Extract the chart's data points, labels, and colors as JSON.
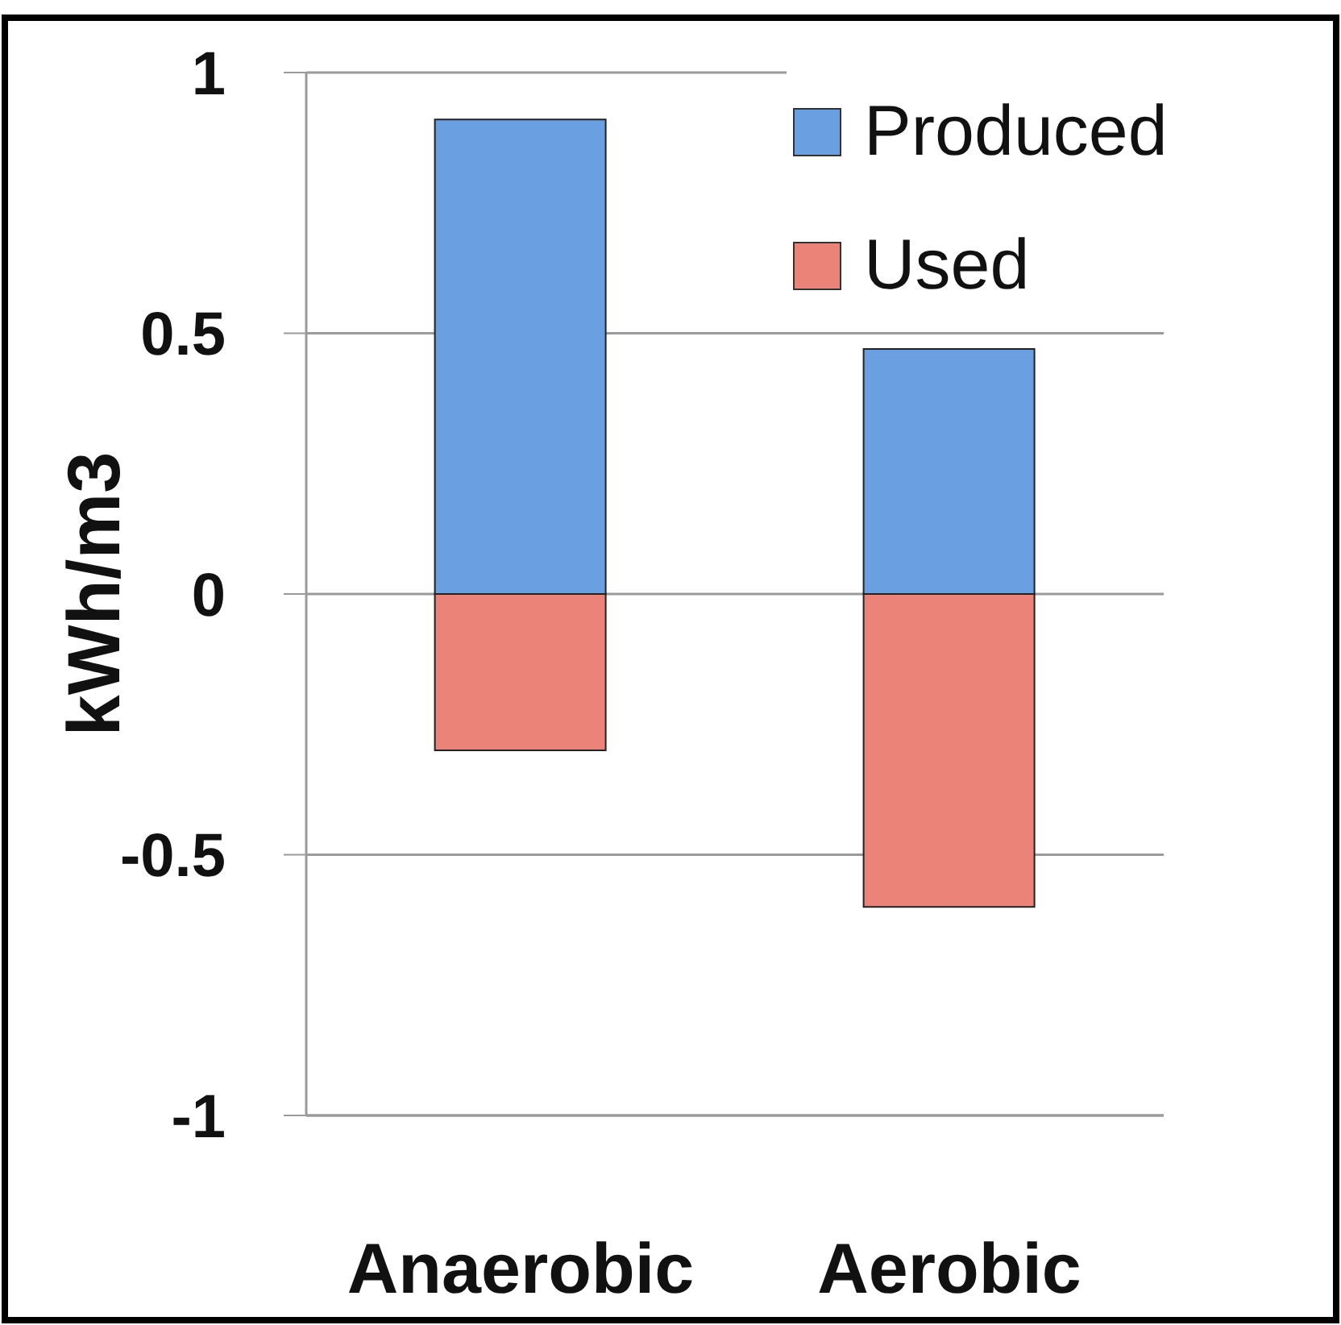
{
  "chart_data": {
    "type": "bar",
    "ylabel": "kWh/m3",
    "categories": [
      "Anaerobic",
      "Aerobic"
    ],
    "series": [
      {
        "name": "Produced",
        "color": "#6a9fe2",
        "values": [
          0.91,
          0.47
        ]
      },
      {
        "name": "Used",
        "color": "#ec8378",
        "values": [
          -0.3,
          -0.6
        ]
      }
    ],
    "stacked": true,
    "ylim": [
      -1,
      1
    ],
    "yticks": [
      -1,
      -0.5,
      0,
      0.5,
      1
    ],
    "grid": "y",
    "legend": "top right"
  }
}
